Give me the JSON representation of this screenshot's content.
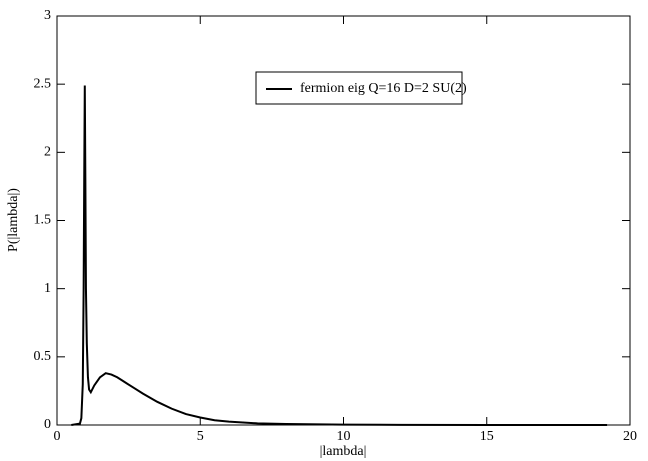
{
  "chart_data": {
    "type": "line",
    "xlabel": "|lambda|",
    "ylabel": "P(|lambda|)",
    "xlim": [
      0,
      20
    ],
    "ylim": [
      0,
      3
    ],
    "xticks": [
      0,
      5,
      10,
      15,
      20
    ],
    "yticks": [
      0,
      0.5,
      1,
      1.5,
      2,
      2.5,
      3
    ],
    "legend": "upper-right",
    "series": [
      {
        "name": "fermion eig Q=16 D=2 SU(2)",
        "color": "#000000",
        "x": [
          0.5,
          0.8,
          0.85,
          0.9,
          0.93,
          0.95,
          0.97,
          0.99,
          1.01,
          1.04,
          1.08,
          1.12,
          1.18,
          1.3,
          1.5,
          1.7,
          1.9,
          2.1,
          2.4,
          2.7,
          3.0,
          3.5,
          4.0,
          4.5,
          5.0,
          5.5,
          6,
          7,
          8,
          10,
          12,
          15,
          19.2
        ],
        "values": [
          0,
          0.01,
          0.05,
          0.3,
          1.0,
          1.8,
          2.49,
          1.8,
          1.0,
          0.6,
          0.35,
          0.26,
          0.24,
          0.29,
          0.35,
          0.38,
          0.37,
          0.35,
          0.31,
          0.27,
          0.23,
          0.17,
          0.12,
          0.08,
          0.055,
          0.035,
          0.025,
          0.012,
          0.007,
          0.003,
          0.001,
          0,
          0
        ]
      }
    ]
  }
}
